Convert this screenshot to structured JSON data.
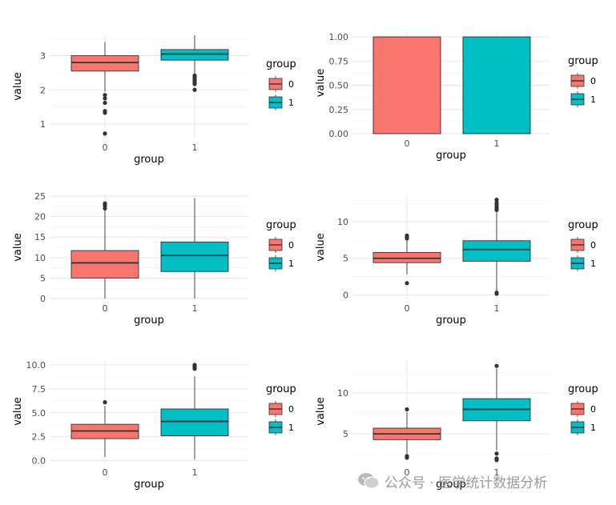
{
  "colors": {
    "group0": "#F8766D",
    "group1": "#00BFC4"
  },
  "legend": {
    "title": "group",
    "labels": [
      "0",
      "1"
    ]
  },
  "watermark": {
    "text": "公众号 · 医学统计数据分析",
    "icon": "wechat-icon"
  },
  "chart_data": [
    {
      "type": "boxplot",
      "xlabel": "group",
      "ylabel": "value",
      "categories": [
        "0",
        "1"
      ],
      "ylim": [
        0.6,
        3.6
      ],
      "yticks": [
        1,
        2,
        3
      ],
      "grid": true,
      "legend_position": "right",
      "boxes": [
        {
          "group": "0",
          "q1": 2.55,
          "median": 2.8,
          "q3": 3.0,
          "whisker_low": 1.95,
          "whisker_high": 3.4,
          "outliers": [
            1.85,
            1.75,
            1.62,
            1.38,
            1.33,
            0.72
          ]
        },
        {
          "group": "1",
          "q1": 2.87,
          "median": 3.05,
          "q3": 3.18,
          "whisker_low": 2.45,
          "whisker_high": 3.6,
          "outliers": [
            2.42,
            2.37,
            2.32,
            2.27,
            2.22,
            2.17,
            2.0
          ]
        }
      ]
    },
    {
      "type": "bar",
      "xlabel": "group",
      "ylabel": "value",
      "categories": [
        "0",
        "1"
      ],
      "values": [
        1.0,
        1.0
      ],
      "ylim": [
        0,
        1.05
      ],
      "yticks": [
        0,
        0.25,
        0.5,
        0.75,
        1.0
      ],
      "ytick_labels": [
        "0.00",
        "0.25",
        "0.50",
        "0.75",
        "1.00"
      ],
      "grid": true,
      "legend_position": "right"
    },
    {
      "type": "boxplot",
      "xlabel": "group",
      "ylabel": "value",
      "categories": [
        "0",
        "1"
      ],
      "ylim": [
        0,
        25
      ],
      "yticks": [
        0,
        5,
        10,
        15,
        20,
        25
      ],
      "grid": true,
      "legend_position": "right",
      "boxes": [
        {
          "group": "0",
          "q1": 5.0,
          "median": 8.7,
          "q3": 11.7,
          "whisker_low": 0,
          "whisker_high": 21.5,
          "outliers": [
            22.0,
            22.7,
            23.2
          ]
        },
        {
          "group": "1",
          "q1": 6.6,
          "median": 10.5,
          "q3": 13.8,
          "whisker_low": 0,
          "whisker_high": 24.5,
          "outliers": []
        }
      ]
    },
    {
      "type": "boxplot",
      "xlabel": "group",
      "ylabel": "value",
      "categories": [
        "0",
        "1"
      ],
      "ylim": [
        -0.5,
        13.5
      ],
      "yticks": [
        0,
        5,
        10
      ],
      "grid": true,
      "legend_position": "right",
      "boxes": [
        {
          "group": "0",
          "q1": 4.4,
          "median": 5.0,
          "q3": 5.8,
          "whisker_low": 2.8,
          "whisker_high": 7.4,
          "outliers": [
            7.7,
            7.9,
            8.1,
            1.6
          ]
        },
        {
          "group": "1",
          "q1": 4.6,
          "median": 6.2,
          "q3": 7.4,
          "whisker_low": 0.6,
          "whisker_high": 11.3,
          "outliers": [
            11.6,
            11.8,
            12.0,
            12.3,
            12.6,
            13.0,
            0.3,
            0.15
          ]
        }
      ]
    },
    {
      "type": "boxplot",
      "xlabel": "group",
      "ylabel": "value",
      "categories": [
        "0",
        "1"
      ],
      "ylim": [
        -0.2,
        10.5
      ],
      "yticks": [
        0,
        2.5,
        5,
        7.5,
        10
      ],
      "ytick_labels": [
        "0.0",
        "2.5",
        "5.0",
        "7.5",
        "10.0"
      ],
      "grid": true,
      "legend_position": "right",
      "boxes": [
        {
          "group": "0",
          "q1": 2.3,
          "median": 3.1,
          "q3": 3.8,
          "whisker_low": 0.4,
          "whisker_high": 5.7,
          "outliers": [
            6.1
          ]
        },
        {
          "group": "1",
          "q1": 2.6,
          "median": 4.1,
          "q3": 5.4,
          "whisker_low": 0.1,
          "whisker_high": 8.8,
          "outliers": [
            9.6,
            9.8,
            9.9,
            10.0
          ]
        }
      ]
    },
    {
      "type": "boxplot",
      "xlabel": "group",
      "ylabel": "value",
      "categories": [
        "0",
        "1"
      ],
      "ylim": [
        1.5,
        14
      ],
      "yticks": [
        5,
        10
      ],
      "grid": true,
      "legend_position": "right",
      "boxes": [
        {
          "group": "0",
          "q1": 4.3,
          "median": 5.0,
          "q3": 5.7,
          "whisker_low": 2.6,
          "whisker_high": 7.7,
          "outliers": [
            8.0,
            2.3,
            2.1
          ]
        },
        {
          "group": "1",
          "q1": 6.6,
          "median": 8.0,
          "q3": 9.3,
          "whisker_low": 3.0,
          "whisker_high": 13.0,
          "outliers": [
            13.3,
            2.6,
            2.0,
            1.8
          ]
        }
      ]
    }
  ]
}
